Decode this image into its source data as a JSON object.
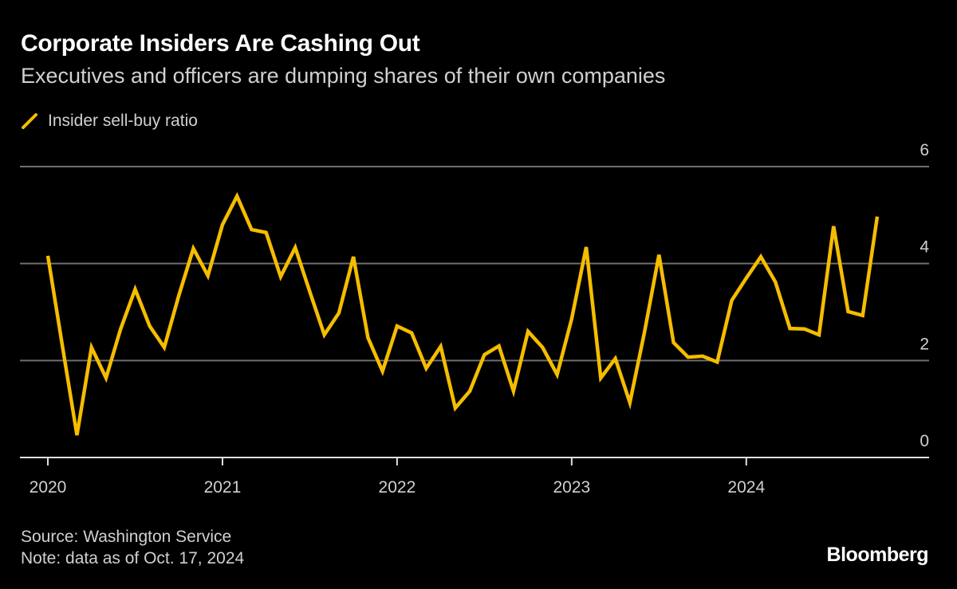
{
  "title": "Corporate Insiders Are Cashing Out",
  "subtitle": "Executives and officers are dumping shares of their own companies",
  "footer": {
    "source": "Source: Washington Service",
    "note": "Note: data as of Oct. 17, 2024",
    "logo": "Bloomberg"
  },
  "colors": {
    "background": "#000000",
    "series": "#f5bd00",
    "grid": "#6e6e6e"
  },
  "chart_data": {
    "type": "line",
    "title": "Corporate Insiders Are Cashing Out",
    "subtitle": "Executives and officers are dumping shares of their own companies",
    "xlabel": "",
    "ylabel": "",
    "ylim": [
      0,
      6
    ],
    "yticks": [
      "0",
      "2",
      "4",
      "6"
    ],
    "xticks": [
      "2020",
      "2021",
      "2022",
      "2023",
      "2024"
    ],
    "grid": true,
    "legend_position": "top-left",
    "series": [
      {
        "name": "Insider sell-buy ratio",
        "x": [
          "2020-01",
          "2020-02",
          "2020-03",
          "2020-04",
          "2020-05",
          "2020-06",
          "2020-07",
          "2020-08",
          "2020-09",
          "2020-10",
          "2020-11",
          "2020-12",
          "2021-01",
          "2021-02",
          "2021-03",
          "2021-04",
          "2021-05",
          "2021-06",
          "2021-07",
          "2021-08",
          "2021-09",
          "2021-10",
          "2021-11",
          "2021-12",
          "2022-01",
          "2022-02",
          "2022-03",
          "2022-04",
          "2022-05",
          "2022-06",
          "2022-07",
          "2022-08",
          "2022-09",
          "2022-10",
          "2022-11",
          "2022-12",
          "2023-01",
          "2023-02",
          "2023-03",
          "2023-04",
          "2023-05",
          "2023-06",
          "2023-07",
          "2023-08",
          "2023-09",
          "2023-10",
          "2023-11",
          "2023-12",
          "2024-01",
          "2024-02",
          "2024-03",
          "2024-04",
          "2024-05",
          "2024-06",
          "2024-07",
          "2024-08",
          "2024-09",
          "2024-10"
        ],
        "values": [
          4.16,
          2.3,
          0.46,
          2.27,
          1.64,
          2.65,
          3.47,
          2.71,
          2.27,
          3.34,
          4.31,
          3.75,
          4.8,
          5.39,
          4.7,
          4.64,
          3.73,
          4.33,
          3.42,
          2.53,
          2.98,
          4.14,
          2.47,
          1.78,
          2.71,
          2.57,
          1.84,
          2.29,
          1.02,
          1.37,
          2.12,
          2.3,
          1.37,
          2.6,
          2.27,
          1.71,
          2.86,
          4.34,
          1.64,
          2.04,
          1.13,
          2.58,
          4.18,
          2.37,
          2.07,
          2.09,
          1.97,
          3.24,
          3.7,
          4.14,
          3.62,
          2.66,
          2.65,
          2.53,
          4.77,
          3.01,
          2.93,
          4.97
        ]
      }
    ]
  }
}
